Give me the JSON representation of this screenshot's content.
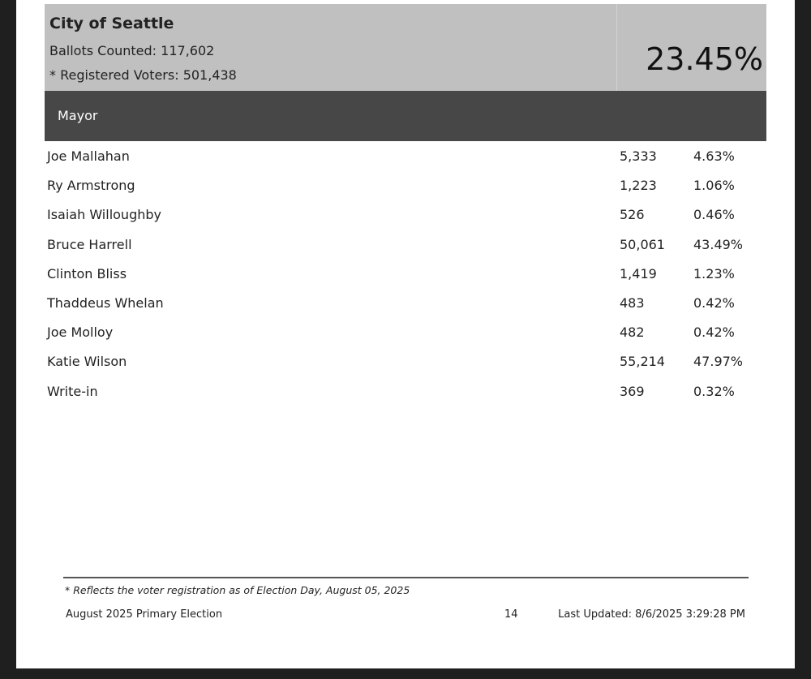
{
  "summary": {
    "jurisdiction": "City of Seattle",
    "ballots_counted": "Ballots Counted: 117,602",
    "registered_voters": "* Registered Voters: 501,438",
    "turnout": "23.45%"
  },
  "race": {
    "title": "Mayor",
    "candidates": [
      {
        "name": "Joe Mallahan",
        "votes": "5,333",
        "pct": "4.63%"
      },
      {
        "name": "Ry Armstrong",
        "votes": "1,223",
        "pct": "1.06%"
      },
      {
        "name": "Isaiah Willoughby",
        "votes": "526",
        "pct": "0.46%"
      },
      {
        "name": "Bruce Harrell",
        "votes": "50,061",
        "pct": "43.49%"
      },
      {
        "name": "Clinton Bliss",
        "votes": "1,419",
        "pct": "1.23%"
      },
      {
        "name": "Thaddeus Whelan",
        "votes": "483",
        "pct": "0.42%"
      },
      {
        "name": "Joe Molloy",
        "votes": "482",
        "pct": "0.42%"
      },
      {
        "name": "Katie Wilson",
        "votes": "55,214",
        "pct": "47.97%"
      },
      {
        "name": "Write-in",
        "votes": "369",
        "pct": "0.32%"
      }
    ]
  },
  "footer": {
    "footnote": "* Reflects the voter registration as of Election Day, August 05, 2025",
    "election": "August 2025 Primary Election",
    "page_number": "14",
    "last_updated": "Last Updated: 8/6/2025 3:29:28 PM"
  },
  "colors": {
    "summary_bg": "#c0c0c0",
    "race_header_bg": "#474747",
    "page_bg": "#ffffff",
    "frame_bg": "#1f1f1f"
  }
}
